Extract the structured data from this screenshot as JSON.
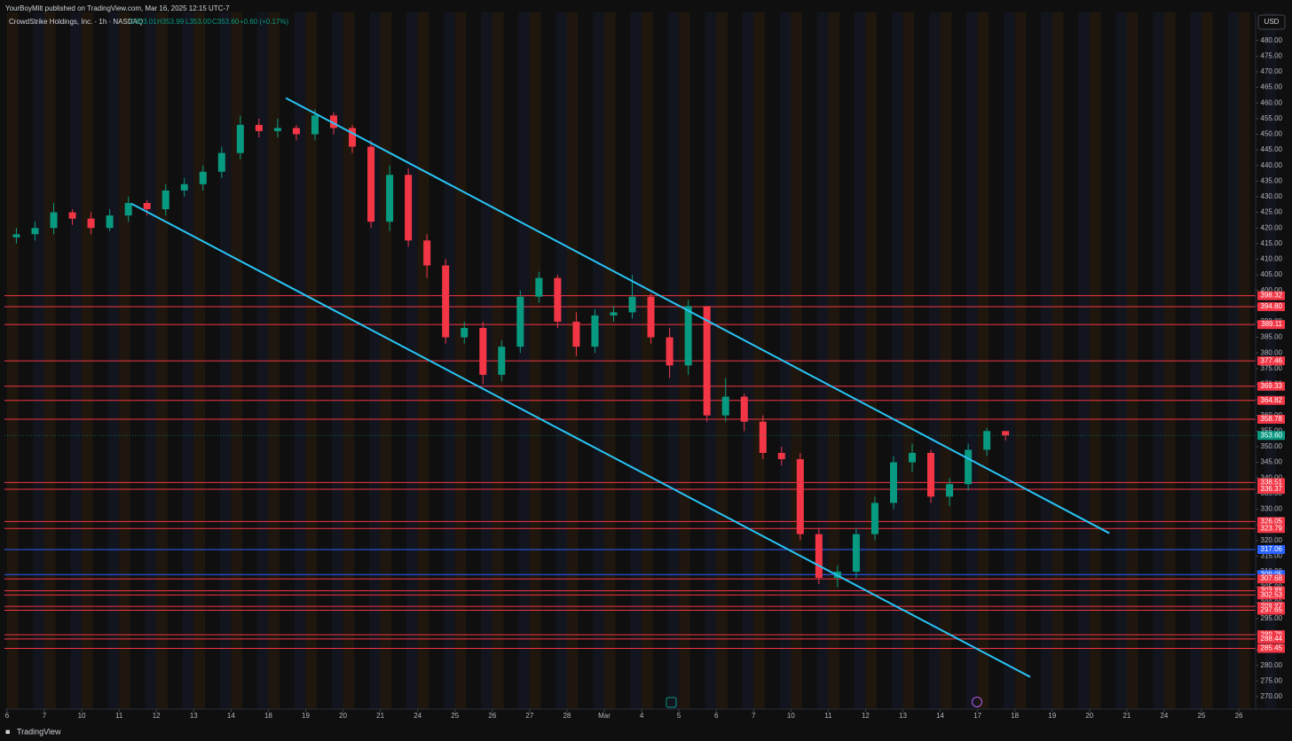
{
  "header": {
    "publisher": "YourBoyMilt published on TradingView.com, Mar 16, 2025 12:15 UTC-7",
    "symbol": "CrowdStrike Holdings, Inc. · 1h · NASDAQ",
    "open": "O353.01",
    "high": "H353.99",
    "low": "L353.00",
    "close": "C353.60",
    "change": "+0.60 (+0.17%)",
    "currency": "USD",
    "brand": "TradingView"
  },
  "chart_data": {
    "type": "candlestick",
    "x": [
      0.25,
      0.75,
      1.25,
      1.75,
      2.25,
      2.75,
      3.25,
      3.75,
      4.25,
      4.75,
      5.25,
      5.75,
      6.25,
      6.75,
      7.25,
      7.75,
      8.25,
      8.75,
      9.25,
      9.75,
      10.25,
      10.75,
      11.25,
      11.75,
      12.25,
      12.75,
      13.25,
      13.75,
      14.25,
      14.75,
      15.25,
      15.75,
      16.25,
      16.75,
      17.25,
      17.75,
      18.25,
      18.75,
      19.25,
      19.75,
      20.25,
      20.75,
      21.25,
      21.75,
      22.25,
      22.75,
      23.25,
      23.75,
      24.25,
      24.75,
      25.25,
      25.75,
      26.25,
      26.75
    ],
    "open": [
      417,
      418,
      420,
      425,
      423,
      420,
      424,
      428,
      426,
      432,
      434,
      438,
      444,
      453,
      451,
      452,
      450,
      456,
      452,
      446,
      422,
      437,
      416,
      408,
      385,
      388,
      373,
      382,
      398,
      404,
      390,
      382,
      392,
      393,
      398,
      385,
      376,
      395,
      360,
      366,
      358,
      348,
      346,
      322,
      308,
      310,
      322,
      332,
      345,
      348,
      334,
      338,
      349,
      355
    ],
    "high": [
      420,
      422,
      428,
      426,
      425,
      426,
      430,
      429,
      434,
      436,
      440,
      446,
      456,
      455,
      455,
      453,
      458,
      457,
      453,
      448,
      440,
      439,
      418,
      410,
      390,
      390,
      384,
      400,
      406,
      405,
      393,
      394,
      395,
      405,
      399,
      388,
      397,
      395,
      372,
      367,
      360,
      350,
      348,
      324,
      312,
      324,
      334,
      347,
      351,
      349,
      340,
      351,
      356,
      354.5
    ],
    "low": [
      415,
      416,
      418,
      421,
      418,
      419,
      422,
      424,
      424,
      430,
      432,
      436,
      442,
      449,
      449,
      448,
      448,
      450,
      444,
      420,
      419,
      414,
      404,
      383,
      383,
      370,
      371,
      380,
      396,
      388,
      379,
      380,
      390,
      391,
      383,
      372,
      373,
      358,
      358,
      355,
      346,
      344,
      320,
      306,
      305,
      308,
      320,
      330,
      342,
      332,
      331,
      336,
      347,
      352
    ],
    "close": [
      418,
      420,
      425,
      423,
      420,
      424,
      428,
      426,
      432,
      434,
      438,
      444,
      453,
      451,
      452,
      450,
      456,
      452,
      446,
      422,
      437,
      416,
      408,
      385,
      388,
      373,
      382,
      398,
      404,
      390,
      382,
      392,
      393,
      398,
      385,
      376,
      395,
      360,
      366,
      358,
      348,
      346,
      322,
      308,
      310,
      322,
      332,
      345,
      348,
      334,
      338,
      349,
      355,
      353.6
    ],
    "up_color": "#089981",
    "down_color": "#f23645",
    "xlim": [
      -0.07,
      33.45
    ],
    "xticks": [
      {
        "value": 0,
        "label": "6"
      },
      {
        "value": 1,
        "label": "7"
      },
      {
        "value": 2,
        "label": "10"
      },
      {
        "value": 3,
        "label": "11"
      },
      {
        "value": 4,
        "label": "12"
      },
      {
        "value": 5,
        "label": "13"
      },
      {
        "value": 6,
        "label": "14"
      },
      {
        "value": 7,
        "label": "18"
      },
      {
        "value": 8,
        "label": "19"
      },
      {
        "value": 9,
        "label": "20"
      },
      {
        "value": 10,
        "label": "21"
      },
      {
        "value": 11,
        "label": "24"
      },
      {
        "value": 12,
        "label": "25"
      },
      {
        "value": 13,
        "label": "26"
      },
      {
        "value": 14,
        "label": "27"
      },
      {
        "value": 15,
        "label": "28"
      },
      {
        "value": 16,
        "label": "Mar"
      },
      {
        "value": 17,
        "label": "4"
      },
      {
        "value": 18,
        "label": "5"
      },
      {
        "value": 19,
        "label": "6"
      },
      {
        "value": 20,
        "label": "7"
      },
      {
        "value": 21,
        "label": "10"
      },
      {
        "value": 22,
        "label": "11"
      },
      {
        "value": 23,
        "label": "12"
      },
      {
        "value": 24,
        "label": "13"
      },
      {
        "value": 25,
        "label": "14"
      },
      {
        "value": 26,
        "label": "17"
      },
      {
        "value": 27,
        "label": "18"
      },
      {
        "value": 28,
        "label": "19"
      },
      {
        "value": 29,
        "label": "20"
      },
      {
        "value": 30,
        "label": "21"
      },
      {
        "value": 31,
        "label": "24"
      },
      {
        "value": 32,
        "label": "25"
      },
      {
        "value": 33,
        "label": "26"
      }
    ],
    "ylim": [
      266,
      489
    ],
    "yticks": [
      {
        "value": 270,
        "label": "270.00"
      },
      {
        "value": 275,
        "label": "275.00"
      },
      {
        "value": 280,
        "label": "280.00"
      },
      {
        "value": 285,
        "label": "285.00"
      },
      {
        "value": 290,
        "label": "290.00"
      },
      {
        "value": 295,
        "label": "295.00"
      },
      {
        "value": 300,
        "label": "300.00"
      },
      {
        "value": 305,
        "label": "305.00"
      },
      {
        "value": 310,
        "label": "310.00"
      },
      {
        "value": 315,
        "label": "315.00"
      },
      {
        "value": 320,
        "label": "320.00"
      },
      {
        "value": 325,
        "label": "325.00"
      },
      {
        "value": 330,
        "label": "330.00"
      },
      {
        "value": 335,
        "label": "335.00"
      },
      {
        "value": 340,
        "label": "340.00"
      },
      {
        "value": 345,
        "label": "345.00"
      },
      {
        "value": 350,
        "label": "350.00"
      },
      {
        "value": 355,
        "label": "355.00"
      },
      {
        "value": 360,
        "label": "360.00"
      },
      {
        "value": 365,
        "label": "365.00"
      },
      {
        "value": 370,
        "label": "370.00"
      },
      {
        "value": 375,
        "label": "375.00"
      },
      {
        "value": 380,
        "label": "380.00"
      },
      {
        "value": 385,
        "label": "385.00"
      },
      {
        "value": 390,
        "label": "390.00"
      },
      {
        "value": 395,
        "label": "395.00"
      },
      {
        "value": 400,
        "label": "400.00"
      },
      {
        "value": 405,
        "label": "405.00"
      },
      {
        "value": 410,
        "label": "410.00"
      },
      {
        "value": 415,
        "label": "415.00"
      },
      {
        "value": 420,
        "label": "420.00"
      },
      {
        "value": 425,
        "label": "425.00"
      },
      {
        "value": 430,
        "label": "430.00"
      },
      {
        "value": 435,
        "label": "435.00"
      },
      {
        "value": 440,
        "label": "440.00"
      },
      {
        "value": 445,
        "label": "445.00"
      },
      {
        "value": 450,
        "label": "450.00"
      },
      {
        "value": 455,
        "label": "455.00"
      },
      {
        "value": 460,
        "label": "460.00"
      },
      {
        "value": 465,
        "label": "465.00"
      },
      {
        "value": 470,
        "label": "470.00"
      },
      {
        "value": 475,
        "label": "475.00"
      },
      {
        "value": 480,
        "label": "480.00"
      }
    ],
    "levels": {
      "values": [
        398.32,
        394.8,
        389.11,
        377.46,
        369.33,
        364.82,
        358.78,
        338.51,
        336.37,
        326.05,
        323.79,
        317.06,
        309.05,
        307.68,
        303.88,
        302.53,
        298.87,
        297.65,
        289.79,
        288.44,
        285.45
      ],
      "value_labels": [
        "398.32",
        "394.80",
        "389.11",
        "377.46",
        "369.33",
        "364.82",
        "358.78",
        "338.51",
        "336.37",
        "326.05",
        "323.79",
        "317.06",
        "309.05",
        "307.68",
        "303.88",
        "302.53",
        "298.87",
        "297.65",
        "289.79",
        "288.44",
        "285.45"
      ],
      "colors": [
        "#f23645",
        "#f23645",
        "#f23645",
        "#f23645",
        "#f23645",
        "#f23645",
        "#f23645",
        "#f23645",
        "#f23645",
        "#f23645",
        "#f23645",
        "#2962ff",
        "#2962ff",
        "#f23645",
        "#f23645",
        "#f23645",
        "#f23645",
        "#f23645",
        "#f23645",
        "#f23645",
        "#f23645"
      ]
    },
    "trendlines": [
      {
        "x": [
          7.47,
          29.53
        ],
        "y": [
          461.6,
          322.3
        ],
        "color": "#29c5f6"
      },
      {
        "x": [
          3.33,
          27.41
        ],
        "y": [
          427.8,
          276.3
        ],
        "color": "#29c5f6"
      }
    ],
    "last_price": {
      "value": 353.6,
      "label": "353.60",
      "color": "#089981"
    }
  }
}
